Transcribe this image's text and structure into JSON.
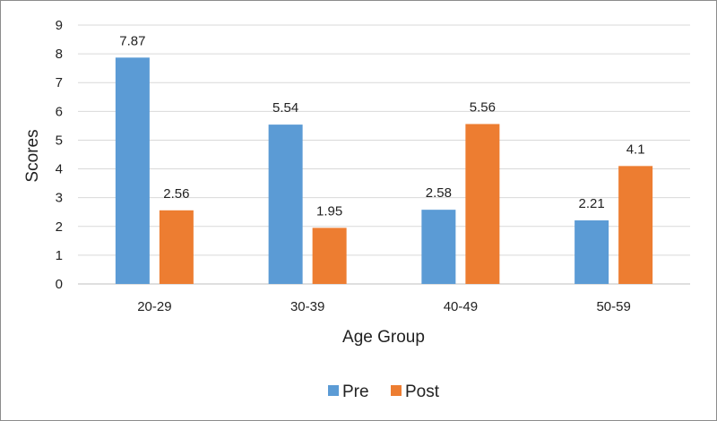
{
  "chart_data": {
    "type": "bar",
    "categories": [
      "20-29",
      "30-39",
      "40-49",
      "50-59"
    ],
    "series": [
      {
        "name": "Pre",
        "values": [
          7.87,
          5.54,
          2.58,
          2.21
        ],
        "color": "#5b9bd5"
      },
      {
        "name": "Post",
        "values": [
          2.56,
          1.95,
          5.56,
          4.1
        ],
        "color": "#ed7d31"
      }
    ],
    "data_labels": [
      [
        "7.87",
        "5.54",
        "2.58",
        "2.21"
      ],
      [
        "2.56",
        "1.95",
        "5.56",
        "4.1"
      ]
    ],
    "xlabel": "Age Group",
    "ylabel": "Scores",
    "ylim": [
      0,
      9
    ],
    "yticks": [
      0,
      1,
      2,
      3,
      4,
      5,
      6,
      7,
      8,
      9
    ],
    "grid": true,
    "legend_position": "bottom"
  }
}
